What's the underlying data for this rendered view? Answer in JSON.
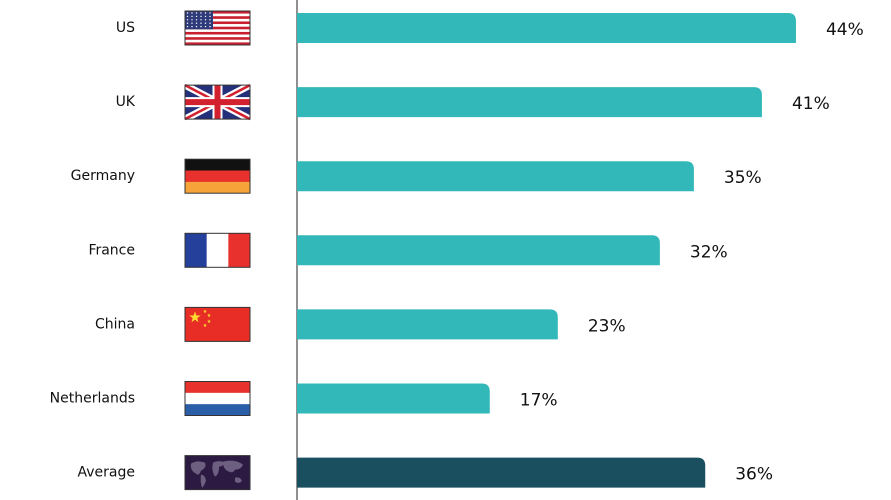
{
  "chart_data": {
    "type": "bar",
    "orientation": "horizontal",
    "categories": [
      "US",
      "UK",
      "Germany",
      "France",
      "China",
      "Netherlands",
      "Average"
    ],
    "values": [
      44,
      41,
      35,
      32,
      23,
      17,
      36
    ],
    "value_labels": [
      "44%",
      "41%",
      "35%",
      "32%",
      "23%",
      "17%",
      "36%"
    ],
    "colors": [
      "#33b8b9",
      "#33b8b9",
      "#33b8b9",
      "#33b8b9",
      "#33b8b9",
      "#33b8b9",
      "#194f5f"
    ]
  }
}
